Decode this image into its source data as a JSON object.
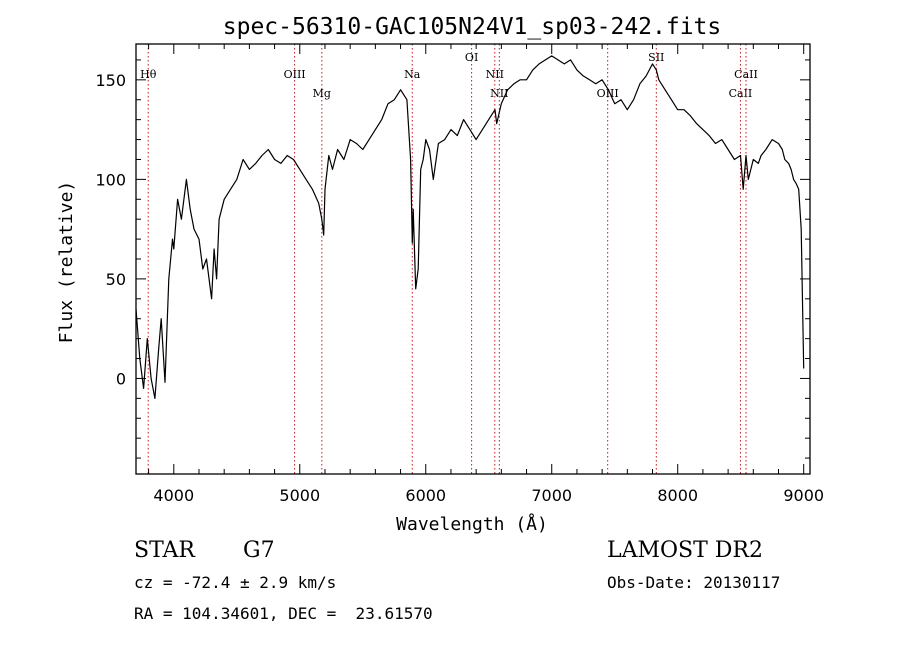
{
  "chart_data": {
    "type": "line",
    "title": "spec-56310-GAC105N24V1_sp03-242.fits",
    "xlabel": "Wavelength (Å)",
    "ylabel": "Flux (relative)",
    "xlim": [
      3700,
      9050
    ],
    "ylim": [
      -48,
      168
    ],
    "xticks": [
      4000,
      5000,
      6000,
      7000,
      8000,
      9000
    ],
    "yticks": [
      0,
      50,
      100,
      150
    ],
    "line_color": "#000000",
    "marker_color": "#b22222",
    "series": [
      {
        "x": [
          3700,
          3730,
          3760,
          3790,
          3820,
          3850,
          3880,
          3900,
          3930,
          3960,
          3990,
          4000,
          4030,
          4060,
          4100,
          4130,
          4160,
          4200,
          4230,
          4260,
          4300,
          4320,
          4340,
          4360,
          4400,
          4450,
          4500,
          4550,
          4600,
          4650,
          4700,
          4750,
          4800,
          4850,
          4900,
          4950,
          5000,
          5050,
          5100,
          5150,
          5175,
          5190,
          5200,
          5230,
          5260,
          5300,
          5350,
          5400,
          5450,
          5500,
          5550,
          5600,
          5650,
          5700,
          5750,
          5800,
          5850,
          5880,
          5893,
          5900,
          5920,
          5940,
          5960,
          5980,
          6000,
          6030,
          6060,
          6100,
          6150,
          6200,
          6250,
          6300,
          6350,
          6400,
          6450,
          6500,
          6550,
          6563,
          6600,
          6650,
          6700,
          6750,
          6800,
          6850,
          6900,
          6950,
          7000,
          7050,
          7100,
          7150,
          7200,
          7250,
          7300,
          7350,
          7400,
          7450,
          7500,
          7550,
          7600,
          7650,
          7700,
          7750,
          7800,
          7830,
          7850,
          7900,
          7950,
          8000,
          8050,
          8100,
          8150,
          8200,
          8250,
          8300,
          8350,
          8400,
          8450,
          8498,
          8520,
          8542,
          8560,
          8600,
          8640,
          8662,
          8700,
          8750,
          8800,
          8830,
          8850,
          8880,
          8900,
          8920,
          8940,
          8960,
          8980,
          9000
        ],
        "y": [
          35,
          10,
          -5,
          20,
          0,
          -10,
          15,
          30,
          -2,
          50,
          70,
          65,
          90,
          80,
          100,
          85,
          75,
          70,
          55,
          60,
          40,
          65,
          50,
          80,
          90,
          95,
          100,
          110,
          105,
          108,
          112,
          115,
          110,
          108,
          112,
          110,
          105,
          100,
          95,
          88,
          80,
          72,
          95,
          112,
          105,
          115,
          110,
          120,
          118,
          115,
          120,
          125,
          130,
          138,
          140,
          145,
          140,
          110,
          68,
          85,
          45,
          55,
          105,
          110,
          120,
          115,
          100,
          118,
          120,
          125,
          122,
          130,
          125,
          120,
          125,
          130,
          135,
          128,
          138,
          145,
          148,
          150,
          150,
          155,
          158,
          160,
          162,
          160,
          158,
          160,
          155,
          152,
          150,
          148,
          150,
          145,
          138,
          140,
          135,
          140,
          148,
          152,
          158,
          155,
          150,
          145,
          140,
          135,
          135,
          132,
          128,
          125,
          122,
          118,
          120,
          115,
          110,
          112,
          95,
          112,
          100,
          110,
          108,
          112,
          115,
          120,
          118,
          115,
          110,
          108,
          105,
          100,
          98,
          95,
          75,
          5
        ]
      }
    ],
    "line_markers": [
      {
        "label": "Hθ",
        "wavelength": 3797,
        "row": "upper"
      },
      {
        "label": "OIII",
        "wavelength": 4959,
        "row": "upper"
      },
      {
        "label": "Mg",
        "wavelength": 5175,
        "row": "lower"
      },
      {
        "label": "Na",
        "wavelength": 5893,
        "row": "upper"
      },
      {
        "label": "OI",
        "wavelength": 6364,
        "row": "top"
      },
      {
        "label": "NII",
        "wavelength": 6548,
        "row": "upper"
      },
      {
        "label": "NII",
        "wavelength": 6584,
        "row": "lower"
      },
      {
        "label": "OIII",
        "wavelength": 7444,
        "row": "lower"
      },
      {
        "label": "SII",
        "wavelength": 7830,
        "row": "top"
      },
      {
        "label": "CaII",
        "wavelength": 8498,
        "row": "lower"
      },
      {
        "label": "CaII",
        "wavelength": 8542,
        "row": "upper"
      }
    ]
  },
  "info": {
    "object_class": "STAR",
    "subclass": "G7",
    "cz": "cz = -72.4 ± 2.9 km/s",
    "coords": "RA = 104.34601, DEC =  23.61570",
    "survey": "LAMOST DR2",
    "obs_date": "Obs-Date: 20130117"
  }
}
